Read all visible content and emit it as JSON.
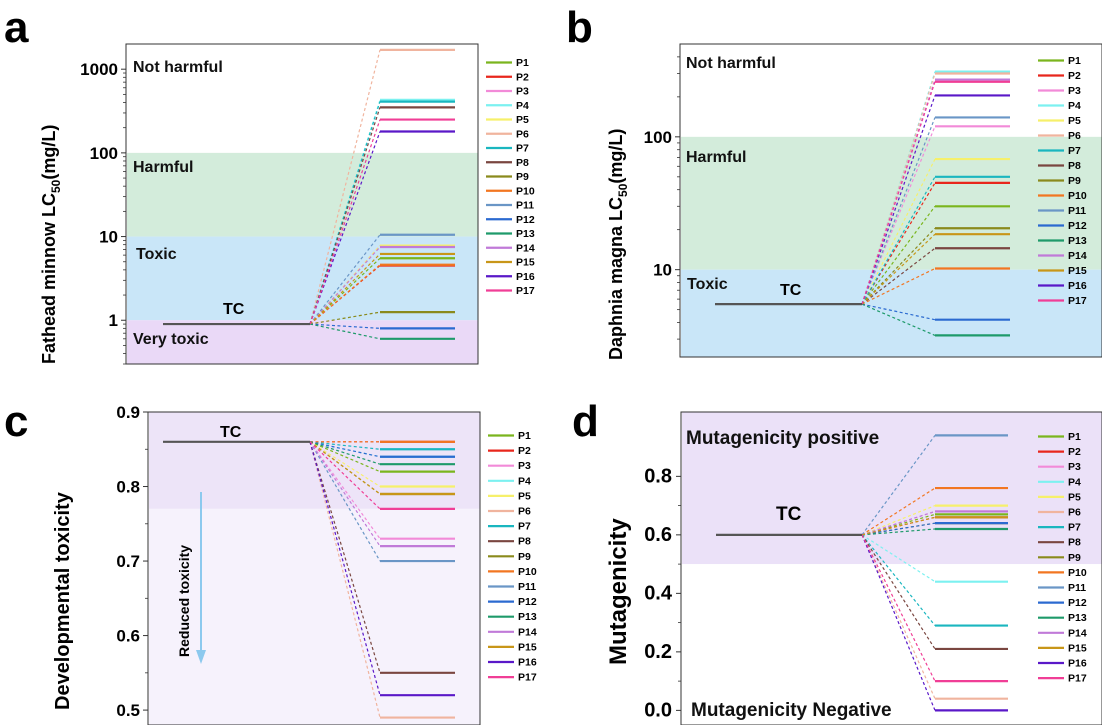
{
  "panels": [
    {
      "letter": "a",
      "ylabel": "Fathead minnow LC",
      "ylabel_sub": "50",
      "ylabel_tail": "(mg/L)",
      "zones": [
        "Not harmful",
        "Harmful",
        "Toxic",
        "Very toxic"
      ],
      "zone_colors": [
        "#ffffff",
        "#d3ecdb",
        "#c9e6f8",
        "#ead9f7"
      ]
    },
    {
      "letter": "b",
      "ylabel": "Daphnia magna LC",
      "ylabel_sub": "50",
      "ylabel_tail": "(mg/L)",
      "zones": [
        "Not harmful",
        "Harmful",
        "Toxic"
      ],
      "zone_colors": [
        "#ffffff",
        "#d3ecdb",
        "#c9e6f8"
      ]
    },
    {
      "letter": "c",
      "ylabel": "Developmental toxicity",
      "annotation": "Reduced toxicity",
      "zone_colors": [
        "#ede4f8",
        "#ffffff"
      ]
    },
    {
      "letter": "d",
      "ylabel": "Mutagenicity",
      "zones": [
        "Mutagenicity positive",
        "Mutagenicity Negative"
      ],
      "zone_colors": [
        "#ebe1f8",
        "#ffffff"
      ]
    }
  ],
  "legend": {
    "items": [
      "P1",
      "P2",
      "P3",
      "P4",
      "P5",
      "P6",
      "P7",
      "P8",
      "P9",
      "P10",
      "P11",
      "P12",
      "P13",
      "P14",
      "P15",
      "P16",
      "P17"
    ],
    "colors": [
      "#7ab51d",
      "#e8261c",
      "#f28ad8",
      "#7cf1f0",
      "#f6f06b",
      "#f0b49e",
      "#1ab6bf",
      "#7a4640",
      "#8a8a1c",
      "#f27621",
      "#6a96c6",
      "#2b6ad0",
      "#1e9a6a",
      "#c07ad8",
      "#c89618",
      "#5a18c8",
      "#f03e96"
    ]
  },
  "chart_data": [
    {
      "type": "line",
      "panel": "a",
      "parent_label": "TC",
      "parent_value": 0.9,
      "yscale": "log",
      "ylim": [
        0.3,
        2000
      ],
      "yticks": [
        1,
        10,
        100,
        1000
      ],
      "ytick_labels": [
        "1",
        "10",
        "100",
        "1000"
      ],
      "zone_bounds": [
        100,
        10,
        1
      ],
      "series_names": [
        "P1",
        "P2",
        "P3",
        "P4",
        "P5",
        "P6",
        "P7",
        "P8",
        "P9",
        "P10",
        "P11",
        "P12",
        "P13",
        "P14",
        "P15",
        "P16",
        "P17"
      ],
      "values": [
        5.5,
        4.5,
        7.8,
        430,
        7.8,
        1700,
        410,
        350,
        1.25,
        4.6,
        10.5,
        0.8,
        0.6,
        7.5,
        6.2,
        180,
        250
      ]
    },
    {
      "type": "line",
      "panel": "b",
      "parent_label": "TC",
      "parent_value": 5.5,
      "yscale": "log",
      "ylim": [
        2.2,
        500
      ],
      "yticks": [
        10,
        100
      ],
      "ytick_labels": [
        "10",
        "100"
      ],
      "zone_bounds": [
        100,
        10
      ],
      "series_names": [
        "P1",
        "P2",
        "P3",
        "P4",
        "P5",
        "P6",
        "P7",
        "P8",
        "P9",
        "P10",
        "P11",
        "P12",
        "P13",
        "P14",
        "P15",
        "P16",
        "P17"
      ],
      "values": [
        30,
        45,
        120,
        310,
        68,
        300,
        50,
        14.5,
        20.5,
        10.2,
        140,
        4.2,
        3.2,
        270,
        18.5,
        205,
        260
      ]
    },
    {
      "type": "line",
      "panel": "c",
      "parent_label": "TC",
      "parent_value": 0.86,
      "ylim": [
        0.48,
        0.9
      ],
      "yticks": [
        0.5,
        0.6,
        0.7,
        0.8,
        0.9
      ],
      "ytick_labels": [
        "0.5",
        "0.6",
        "0.7",
        "0.8",
        "0.9"
      ],
      "series_names": [
        "P1",
        "P2",
        "P3",
        "P4",
        "P5",
        "P6",
        "P7",
        "P8",
        "P9",
        "P10",
        "P11",
        "P12",
        "P13",
        "P14",
        "P15",
        "P16",
        "P17"
      ],
      "values": [
        0.82,
        0.86,
        0.73,
        0.84,
        0.8,
        0.49,
        0.85,
        0.55,
        0.79,
        0.86,
        0.7,
        0.84,
        0.83,
        0.72,
        0.79,
        0.52,
        0.77
      ]
    },
    {
      "type": "line",
      "panel": "d",
      "parent_label": "TC",
      "parent_value": 0.6,
      "ylim": [
        -0.05,
        1.02
      ],
      "yticks": [
        0.0,
        0.2,
        0.4,
        0.6,
        0.8
      ],
      "ytick_labels": [
        "0.0",
        "0.2",
        "0.4",
        "0.6",
        "0.8"
      ],
      "zone_bounds": [
        0.5
      ],
      "series_names": [
        "P1",
        "P2",
        "P3",
        "P4",
        "P5",
        "P6",
        "P7",
        "P8",
        "P9",
        "P10",
        "P11",
        "P12",
        "P13",
        "P14",
        "P15",
        "P16",
        "P17"
      ],
      "values": [
        0.67,
        0.66,
        0.68,
        0.44,
        0.7,
        0.04,
        0.29,
        0.21,
        0.64,
        0.76,
        0.94,
        0.64,
        0.62,
        0.68,
        0.66,
        0.0,
        0.1
      ]
    }
  ]
}
